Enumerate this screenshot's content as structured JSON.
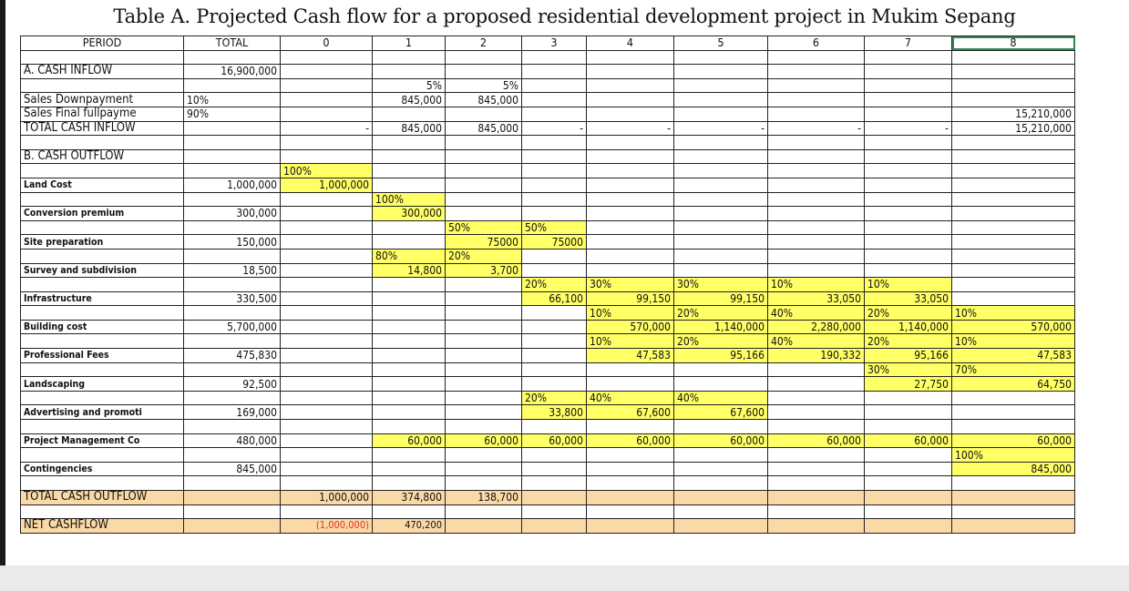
{
  "title": "Table A. Projected Cash flow for a proposed residential development project in Mukim Sepang",
  "header": [
    "PERIOD",
    "TOTAL",
    "0",
    "1",
    "2",
    "3",
    "4",
    "5",
    "6",
    "7",
    "8"
  ],
  "rows": [
    [
      "",
      "",
      "",
      "",
      "",
      "",
      "",
      "",
      "",
      "",
      ""
    ],
    [
      "A. CASH INFLOW",
      "16,900,000",
      "",
      "",
      "",
      "",
      "",
      "",
      "",
      "",
      ""
    ],
    [
      "",
      "",
      "",
      "5%",
      "5%",
      "",
      "",
      "",
      "",
      "",
      ""
    ],
    [
      "Sales Downpayment",
      "10%",
      "",
      "845,000",
      "845,000",
      "",
      "",
      "",
      "",
      "",
      ""
    ],
    [
      "Sales Final fullpayme",
      "90%",
      "",
      "",
      "",
      "",
      "",
      "",
      "",
      "",
      "15,210,000"
    ],
    [
      "TOTAL CASH INFLOW",
      "",
      "-",
      "845,000",
      "845,000",
      "-",
      "-",
      "-",
      "-",
      "-",
      "15,210,000"
    ],
    [
      "",
      "",
      "",
      "",
      "",
      "",
      "",
      "",
      "",
      "",
      ""
    ],
    [
      "B. CASH OUTFLOW",
      "",
      "",
      "",
      "",
      "",
      "",
      "",
      "",
      "",
      ""
    ],
    [
      "",
      "",
      "100%",
      "",
      "",
      "",
      "",
      "",
      "",
      "",
      ""
    ],
    [
      "Land Cost",
      "1,000,000",
      "1,000,000",
      "",
      "",
      "",
      "",
      "",
      "",
      "",
      ""
    ],
    [
      "",
      "",
      "",
      "100%",
      "",
      "",
      "",
      "",
      "",
      "",
      ""
    ],
    [
      "Conversion premium",
      "300,000",
      "",
      "300,000",
      "",
      "",
      "",
      "",
      "",
      "",
      ""
    ],
    [
      "",
      "",
      "",
      "",
      "50%",
      "50%",
      "",
      "",
      "",
      "",
      ""
    ],
    [
      "Site preparation",
      "150,000",
      "",
      "",
      "75000",
      "75000",
      "",
      "",
      "",
      "",
      ""
    ],
    [
      "",
      "",
      "",
      "80%",
      "20%",
      "",
      "",
      "",
      "",
      "",
      ""
    ],
    [
      "Survey and subdivision",
      "18,500",
      "",
      "14,800",
      "3,700",
      "",
      "",
      "",
      "",
      "",
      ""
    ],
    [
      "",
      "",
      "",
      "",
      "",
      "20%",
      "30%",
      "30%",
      "10%",
      "10%",
      ""
    ],
    [
      "Infrastructure",
      "330,500",
      "",
      "",
      "",
      "66,100",
      "99,150",
      "99,150",
      "33,050",
      "33,050",
      ""
    ],
    [
      "",
      "",
      "",
      "",
      "",
      "",
      "10%",
      "20%",
      "40%",
      "20%",
      "10%"
    ],
    [
      "Building cost",
      "5,700,000",
      "",
      "",
      "",
      "",
      "570,000",
      "1,140,000",
      "2,280,000",
      "1,140,000",
      "570,000"
    ],
    [
      "",
      "",
      "",
      "",
      "",
      "",
      "10%",
      "20%",
      "40%",
      "20%",
      "10%"
    ],
    [
      "Professional Fees",
      "475,830",
      "",
      "",
      "",
      "",
      "47,583",
      "95,166",
      "190,332",
      "95,166",
      "47,583"
    ],
    [
      "",
      "",
      "",
      "",
      "",
      "",
      "",
      "",
      "",
      "30%",
      "70%"
    ],
    [
      "Landscaping",
      "92,500",
      "",
      "",
      "",
      "",
      "",
      "",
      "",
      "27,750",
      "64,750"
    ],
    [
      "",
      "",
      "",
      "",
      "",
      "20%",
      "40%",
      "40%",
      "",
      "",
      ""
    ],
    [
      "Advertising and promoti",
      "169,000",
      "",
      "",
      "",
      "33,800",
      "67,600",
      "67,600",
      "",
      "",
      ""
    ],
    [
      "",
      "",
      "",
      "",
      "",
      "",
      "",
      "",
      "",
      "",
      ""
    ],
    [
      "Project Management Co",
      "480,000",
      "",
      "60,000",
      "60,000",
      "60,000",
      "60,000",
      "60,000",
      "60,000",
      "60,000",
      "60,000"
    ],
    [
      "",
      "",
      "",
      "",
      "",
      "",
      "",
      "",
      "",
      "",
      "100%"
    ],
    [
      "Contingencies",
      "845,000",
      "",
      "",
      "",
      "",
      "",
      "",
      "",
      "",
      "845,000"
    ],
    [
      "",
      "",
      "",
      "",
      "",
      "",
      "",
      "",
      "",
      "",
      ""
    ],
    [
      "TOTAL CASH OUTFLOW",
      "",
      "1,000,000",
      "374,800",
      "138,700",
      "",
      "",
      "",
      "",
      "",
      ""
    ],
    [
      "",
      "",
      "",
      "",
      "",
      "",
      "",
      "",
      "",
      "",
      ""
    ],
    [
      "NET CASHFLOW",
      "",
      "(1,000,000)",
      "470,200",
      "",
      "",
      "",
      "",
      "",
      "",
      ""
    ]
  ],
  "highlight": {
    "yellow": "#ffff66",
    "tan": "#fbd9a6",
    "negative": "#e0301e"
  }
}
